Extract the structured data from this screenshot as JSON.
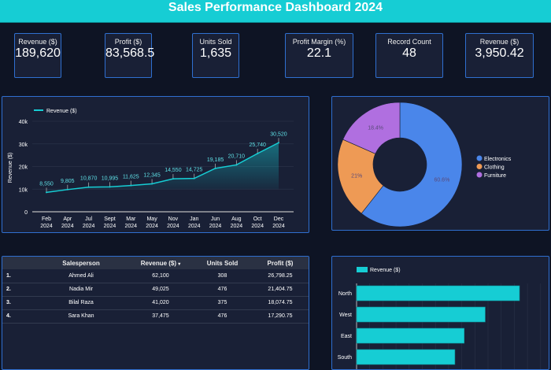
{
  "header": {
    "title": "Sales Performance Dashboard 2024"
  },
  "kpis": [
    {
      "label": "Revenue ($)",
      "value": "189,620"
    },
    {
      "label": "Profit ($)",
      "value": "83,568.5"
    },
    {
      "label": "Units Sold",
      "value": "1,635"
    },
    {
      "label": "Profit Margin (%)",
      "value": "22.1"
    },
    {
      "label": "Record Count",
      "value": "48"
    },
    {
      "label": "Revenue ($)",
      "value": "3,950.42"
    }
  ],
  "colors": {
    "accent": "#16cdd4",
    "panel_border": "#2f6fd0",
    "electronics": "#4a86ea",
    "clothing": "#ee9a55",
    "furniture": "#b06fe0"
  },
  "chart_data": [
    {
      "type": "area",
      "legend": "Revenue ($)",
      "ylabel": "Revenue ($)",
      "ylim": [
        0,
        40000
      ],
      "yticks": [
        "0",
        "10k",
        "20k",
        "30k",
        "40k"
      ],
      "grid": true,
      "legend_position": "top-left",
      "categories": [
        [
          "Feb",
          "2024"
        ],
        [
          "Apr",
          "2024"
        ],
        [
          "Jul",
          "2024"
        ],
        [
          "Sept",
          "2024"
        ],
        [
          "Mar",
          "2024"
        ],
        [
          "May",
          "2024"
        ],
        [
          "Nov",
          "2024"
        ],
        [
          "Jan",
          "2024"
        ],
        [
          "Jun",
          "2024"
        ],
        [
          "Aug",
          "2024"
        ],
        [
          "Oct",
          "2024"
        ],
        [
          "Dec",
          "2024"
        ]
      ],
      "values": [
        8550,
        9805,
        10870,
        10995,
        11625,
        12345,
        14550,
        14725,
        19185,
        20710,
        25740,
        30520
      ],
      "labels": [
        "8,550",
        "9,805",
        "10,870",
        "10,995",
        "11,625",
        "12,345",
        "14,550",
        "14,725",
        "19,185",
        "20,710",
        "25,740",
        "30,520"
      ]
    },
    {
      "type": "pie",
      "donut": true,
      "legend_position": "right",
      "slices": [
        {
          "name": "Electronics",
          "value": 60.6,
          "label": "60.6%"
        },
        {
          "name": "Clothing",
          "value": 21,
          "label": "21%"
        },
        {
          "name": "Furniture",
          "value": 18.4,
          "label": "18.4%"
        }
      ]
    },
    {
      "type": "bar",
      "orientation": "horizontal",
      "legend": "Revenue ($)",
      "legend_position": "top-left",
      "categories": [
        "North",
        "West",
        "East",
        "South"
      ],
      "values": [
        62100,
        49025,
        41020,
        37475
      ]
    }
  ],
  "table": {
    "columns": [
      "",
      "Salesperson",
      "Revenue ($)",
      "Units Sold",
      "Profit ($)"
    ],
    "sort_icon": "sort-desc-icon",
    "rows": [
      [
        "1.",
        "Ahmed Ali",
        "62,100",
        "308",
        "26,798.25"
      ],
      [
        "2.",
        "Nadia Mir",
        "49,025",
        "476",
        "21,404.75"
      ],
      [
        "3.",
        "Bilal Raza",
        "41,020",
        "375",
        "18,074.75"
      ],
      [
        "4.",
        "Sara Khan",
        "37,475",
        "476",
        "17,290.75"
      ]
    ]
  }
}
